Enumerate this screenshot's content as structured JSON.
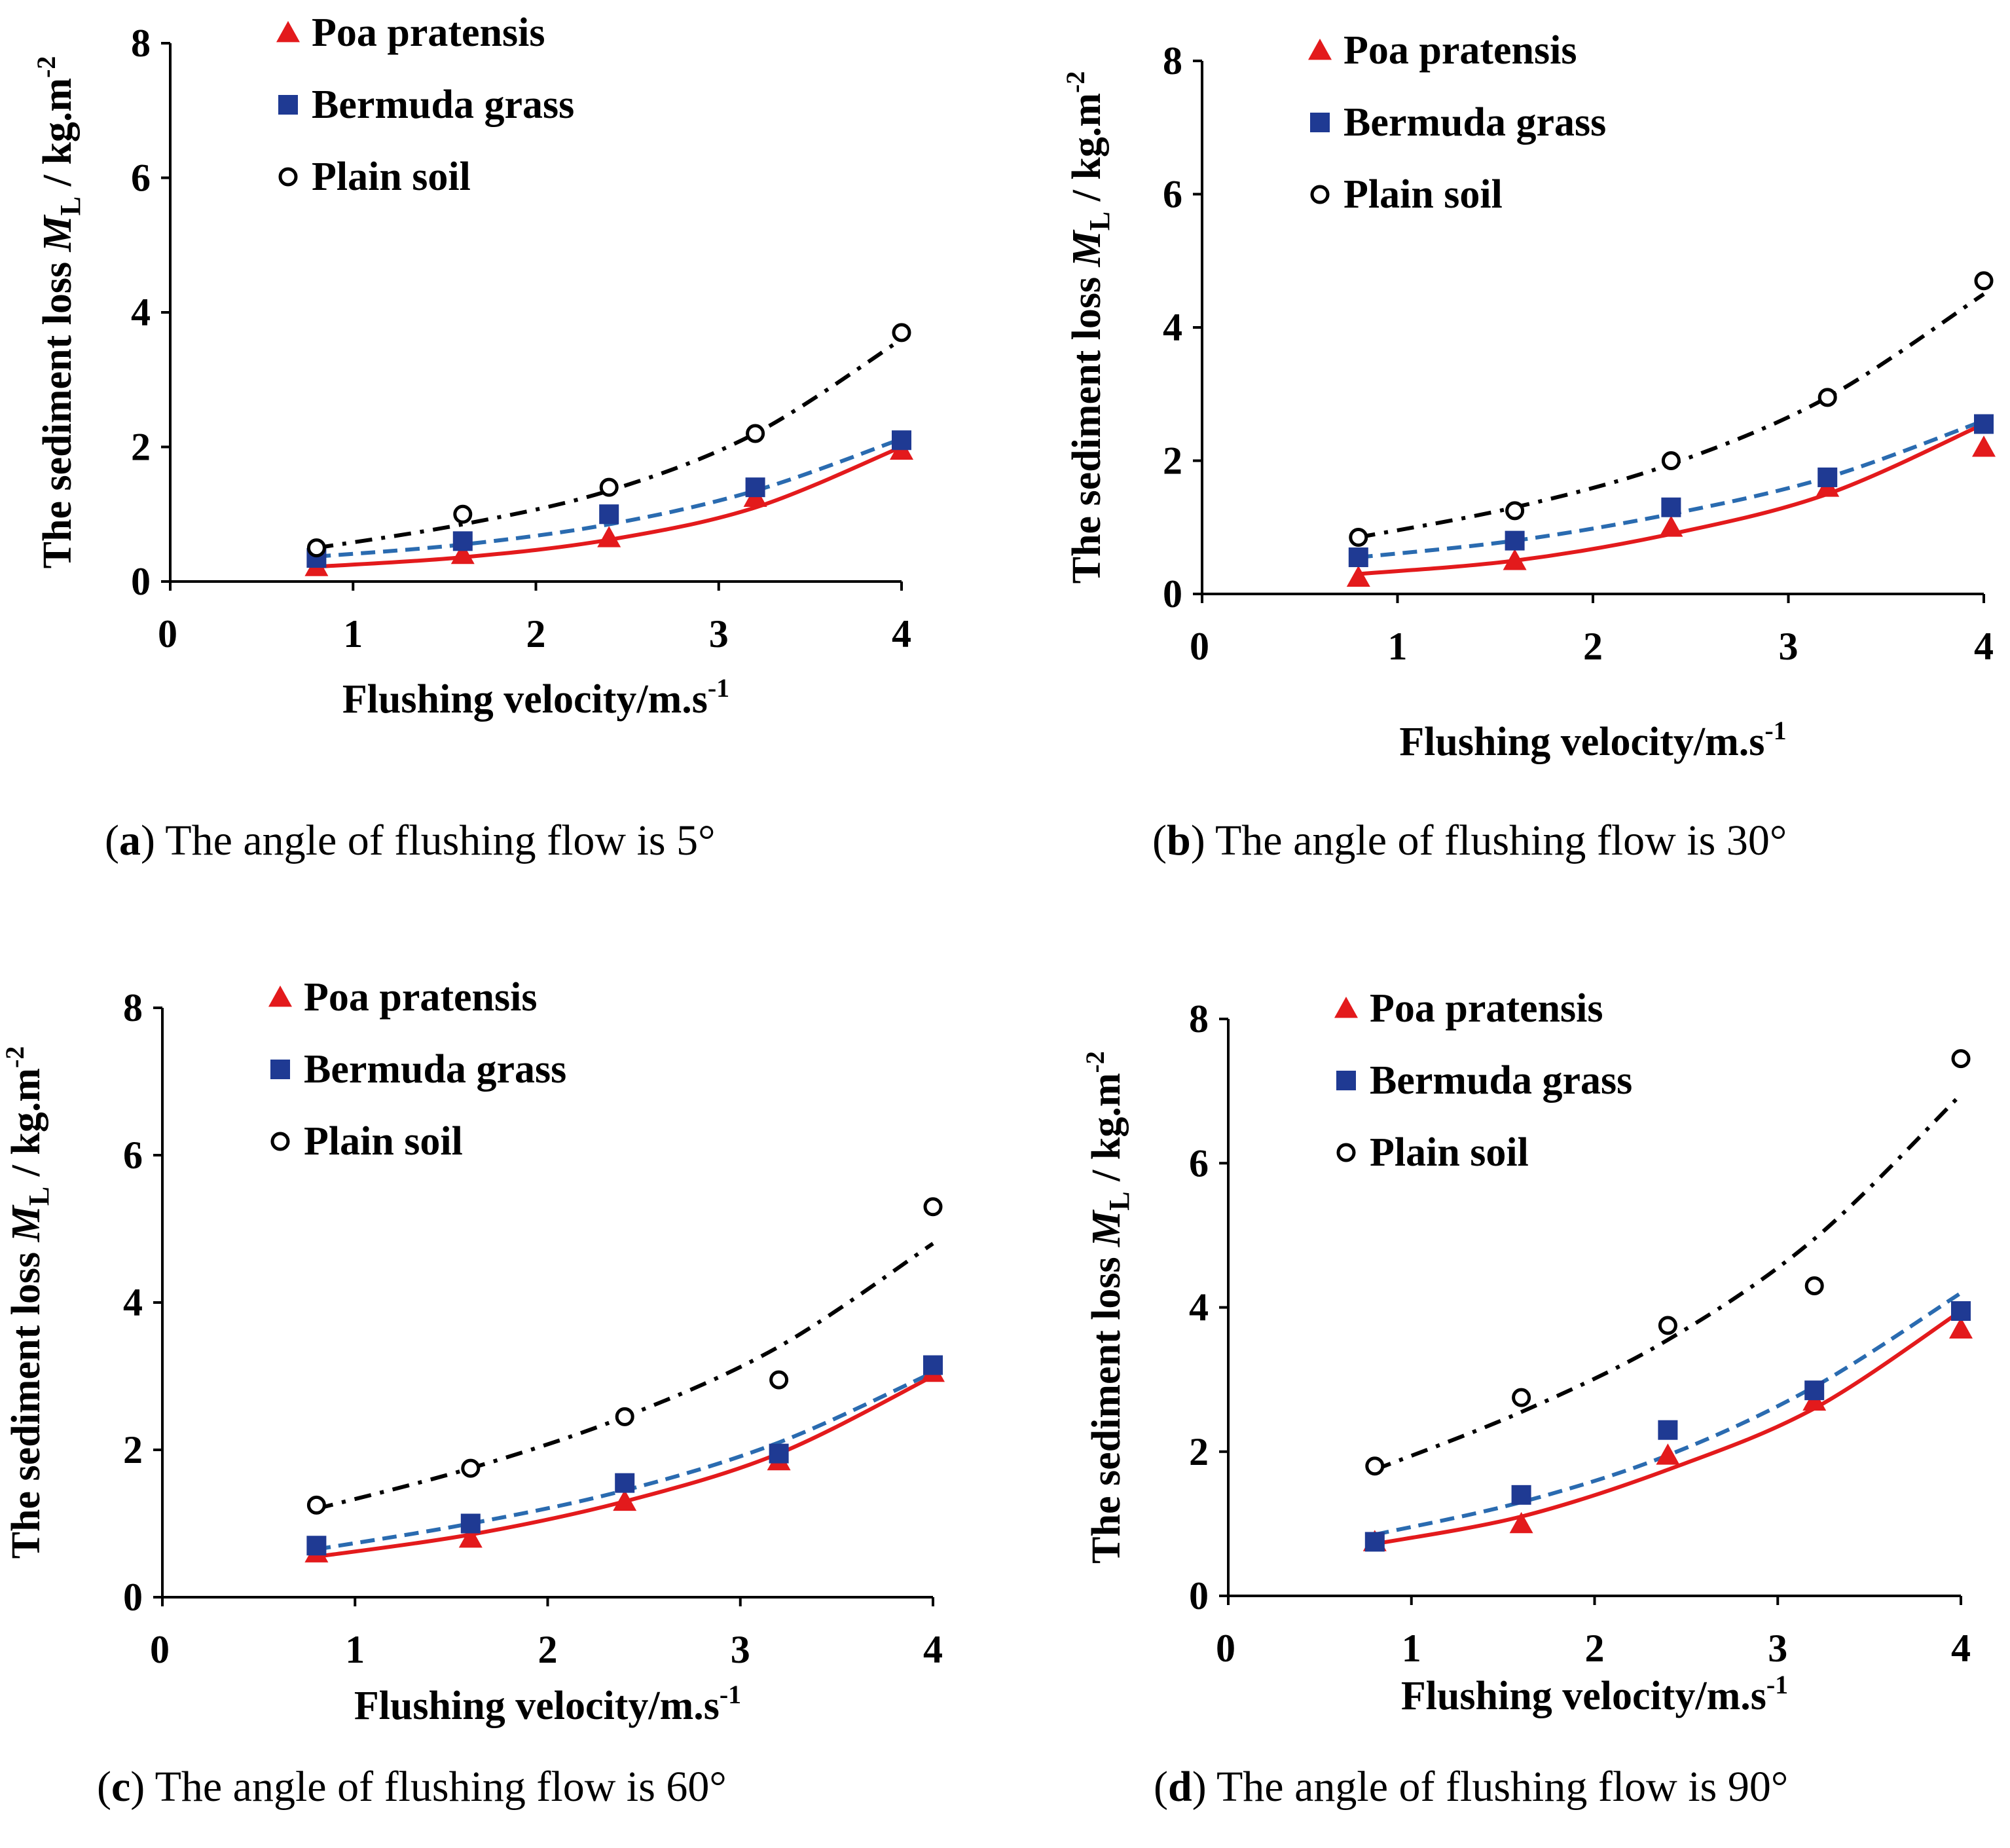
{
  "chart_data": [
    {
      "type": "scatter",
      "panel": "a",
      "caption_letter": "a",
      "caption_text": "The angle of flushing flow is 5°",
      "xlabel": "Flushing velocity/m.s",
      "xlabel_sup": "-1",
      "ylabel": "The sediment loss ",
      "ylabel_sym": "M",
      "ylabel_sub": "L",
      "ylabel_unit": " / kg.m",
      "ylabel_sup": "-2",
      "xlim": [
        0,
        4
      ],
      "ylim": [
        0,
        8
      ],
      "xticks": [
        "0",
        "1",
        "2",
        "3",
        "4"
      ],
      "yticks": [
        "0",
        "2",
        "4",
        "6",
        "8"
      ],
      "legend_position": "top-left",
      "x": [
        0.8,
        1.6,
        2.4,
        3.2,
        4.0
      ],
      "series": [
        {
          "name": "Poa pratensis",
          "marker": "triangle",
          "color": "#e31a1c",
          "line_style": "solid",
          "values": [
            0.22,
            0.4,
            0.65,
            1.25,
            1.95
          ],
          "fit": [
            0.22,
            0.36,
            0.62,
            1.1,
            2.0
          ]
        },
        {
          "name": "Bermuda grass",
          "marker": "square",
          "color": "#1f3a93",
          "line_style": "dashed",
          "values": [
            0.35,
            0.6,
            1.0,
            1.4,
            2.1
          ],
          "fit": [
            0.37,
            0.55,
            0.85,
            1.35,
            2.12
          ]
        },
        {
          "name": "Plain soil",
          "marker": "circle",
          "color": "#000000",
          "line_style": "dashdot",
          "values": [
            0.5,
            1.0,
            1.4,
            2.2,
            3.7
          ],
          "fit": [
            0.5,
            0.85,
            1.35,
            2.2,
            3.6
          ]
        }
      ]
    },
    {
      "type": "scatter",
      "panel": "b",
      "caption_letter": "b",
      "caption_text": "The angle of flushing flow is 30°",
      "xlabel": "Flushing velocity/m.s",
      "xlabel_sup": "-1",
      "ylabel": "The sediment loss ",
      "ylabel_sym": "M",
      "ylabel_sub": "L",
      "ylabel_unit": " / kg.m",
      "ylabel_sup": "-2",
      "xlim": [
        0,
        4
      ],
      "ylim": [
        0,
        8
      ],
      "xticks": [
        "0",
        "1",
        "2",
        "3",
        "4"
      ],
      "yticks": [
        "0",
        "2",
        "4",
        "6",
        "8"
      ],
      "legend_position": "top-left",
      "x": [
        0.8,
        1.6,
        2.4,
        3.2,
        4.0
      ],
      "series": [
        {
          "name": "Poa pratensis",
          "marker": "triangle",
          "color": "#e31a1c",
          "line_style": "solid",
          "values": [
            0.25,
            0.5,
            1.0,
            1.6,
            2.2
          ],
          "fit": [
            0.3,
            0.5,
            0.9,
            1.5,
            2.55
          ]
        },
        {
          "name": "Bermuda grass",
          "marker": "square",
          "color": "#1f3a93",
          "line_style": "dashed",
          "values": [
            0.55,
            0.8,
            1.3,
            1.75,
            2.55
          ],
          "fit": [
            0.55,
            0.8,
            1.2,
            1.75,
            2.6
          ]
        },
        {
          "name": "Plain soil",
          "marker": "circle",
          "color": "#000000",
          "line_style": "dashdot",
          "values": [
            0.85,
            1.25,
            2.0,
            2.95,
            4.7
          ],
          "fit": [
            0.85,
            1.3,
            1.95,
            2.95,
            4.5
          ]
        }
      ]
    },
    {
      "type": "scatter",
      "panel": "c",
      "caption_letter": "c",
      "caption_text": "The angle of flushing flow is 60°",
      "xlabel": "Flushing velocity/m.s",
      "xlabel_sup": "-1",
      "ylabel": "The sediment loss ",
      "ylabel_sym": "M",
      "ylabel_sub": "L",
      "ylabel_unit": " / kg.m",
      "ylabel_sup": "-2",
      "xlim": [
        0,
        4
      ],
      "ylim": [
        0,
        8
      ],
      "xticks": [
        "0",
        "1",
        "2",
        "3",
        "4"
      ],
      "yticks": [
        "0",
        "2",
        "4",
        "6",
        "8"
      ],
      "legend_position": "top-left",
      "x": [
        0.8,
        1.6,
        2.4,
        3.2,
        4.0
      ],
      "series": [
        {
          "name": "Poa pratensis",
          "marker": "triangle",
          "color": "#e31a1c",
          "line_style": "solid",
          "values": [
            0.6,
            0.8,
            1.3,
            1.85,
            3.05
          ],
          "fit": [
            0.55,
            0.85,
            1.3,
            1.95,
            3.0
          ]
        },
        {
          "name": "Bermuda grass",
          "marker": "square",
          "color": "#1f3a93",
          "line_style": "dashed",
          "values": [
            0.7,
            1.0,
            1.55,
            1.95,
            3.15
          ],
          "fit": [
            0.65,
            1.0,
            1.45,
            2.1,
            3.05
          ]
        },
        {
          "name": "Plain soil",
          "marker": "circle",
          "color": "#000000",
          "line_style": "dashdot",
          "values": [
            1.25,
            1.75,
            2.45,
            2.95,
            5.3
          ],
          "fit": [
            1.2,
            1.75,
            2.45,
            3.4,
            4.8
          ]
        }
      ]
    },
    {
      "type": "scatter",
      "panel": "d",
      "caption_letter": "d",
      "caption_text": "The angle of flushing flow is 90°",
      "xlabel": "Flushing velocity/m.s",
      "xlabel_sup": "-1",
      "ylabel": "The sediment loss ",
      "ylabel_sym": "M",
      "ylabel_sub": "L",
      "ylabel_unit": " / kg.m",
      "ylabel_sup": "-2",
      "xlim": [
        0,
        4
      ],
      "ylim": [
        0,
        8
      ],
      "xticks": [
        "0",
        "1",
        "2",
        "3",
        "4"
      ],
      "yticks": [
        "0",
        "2",
        "4",
        "6",
        "8"
      ],
      "legend_position": "top-left",
      "x": [
        0.8,
        1.6,
        2.4,
        3.2,
        4.0
      ],
      "series": [
        {
          "name": "Poa pratensis",
          "marker": "triangle",
          "color": "#e31a1c",
          "line_style": "solid",
          "values": [
            0.75,
            1.0,
            1.95,
            2.7,
            3.7
          ],
          "fit": [
            0.72,
            1.1,
            1.75,
            2.6,
            3.95
          ]
        },
        {
          "name": "Bermuda grass",
          "marker": "square",
          "color": "#1f3a93",
          "line_style": "dashed",
          "values": [
            0.75,
            1.4,
            2.3,
            2.85,
            3.95
          ],
          "fit": [
            0.85,
            1.3,
            1.95,
            2.9,
            4.2
          ]
        },
        {
          "name": "Plain soil",
          "marker": "circle",
          "color": "#000000",
          "line_style": "dashdot",
          "values": [
            1.8,
            2.75,
            3.75,
            4.3,
            7.45
          ],
          "fit": [
            1.75,
            2.55,
            3.55,
            4.95,
            6.95
          ]
        }
      ]
    }
  ]
}
